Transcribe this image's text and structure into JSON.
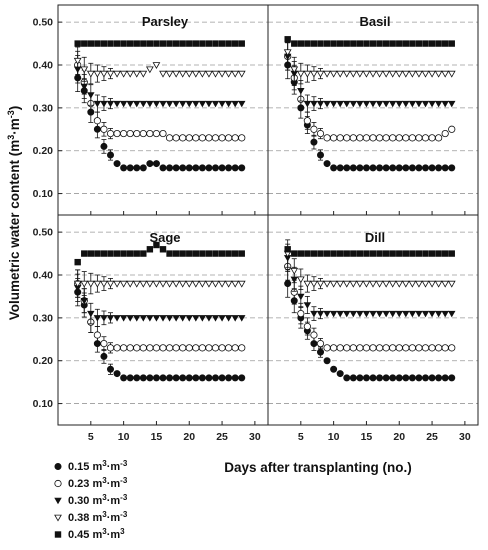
{
  "chart_data": [
    {
      "type": "scatter",
      "title": "Parsley",
      "x": [
        3,
        4,
        5,
        6,
        7,
        8,
        9,
        10,
        11,
        12,
        13,
        14,
        15,
        16,
        17,
        18,
        19,
        20,
        21,
        22,
        23,
        24,
        25,
        26,
        27,
        28
      ],
      "series": [
        {
          "name": "0.15",
          "values": [
            0.37,
            0.34,
            0.29,
            0.25,
            0.21,
            0.19,
            0.17,
            0.16,
            0.16,
            0.16,
            0.16,
            0.17,
            0.17,
            0.16,
            0.16,
            0.16,
            0.16,
            0.16,
            0.16,
            0.16,
            0.16,
            0.16,
            0.16,
            0.16,
            0.16,
            0.16
          ]
        },
        {
          "name": "0.23",
          "values": [
            0.4,
            0.36,
            0.31,
            0.27,
            0.25,
            0.24,
            0.24,
            0.24,
            0.24,
            0.24,
            0.24,
            0.24,
            0.24,
            0.24,
            0.23,
            0.23,
            0.23,
            0.23,
            0.23,
            0.23,
            0.23,
            0.23,
            0.23,
            0.23,
            0.23,
            0.23
          ]
        },
        {
          "name": "0.30",
          "values": [
            0.39,
            0.35,
            0.33,
            0.31,
            0.31,
            0.31,
            0.31,
            0.31,
            0.31,
            0.31,
            0.31,
            0.31,
            0.31,
            0.31,
            0.31,
            0.31,
            0.31,
            0.31,
            0.31,
            0.31,
            0.31,
            0.31,
            0.31,
            0.31,
            0.31,
            0.31
          ]
        },
        {
          "name": "0.38",
          "values": [
            0.41,
            0.39,
            0.38,
            0.38,
            0.38,
            0.38,
            0.38,
            0.38,
            0.38,
            0.38,
            0.38,
            0.39,
            0.4,
            0.38,
            0.38,
            0.38,
            0.38,
            0.38,
            0.38,
            0.38,
            0.38,
            0.38,
            0.38,
            0.38,
            0.38,
            0.38
          ]
        },
        {
          "name": "0.45",
          "values": [
            0.45,
            0.45,
            0.45,
            0.45,
            0.45,
            0.45,
            0.45,
            0.45,
            0.45,
            0.45,
            0.45,
            0.45,
            0.45,
            0.45,
            0.45,
            0.45,
            0.45,
            0.45,
            0.45,
            0.45,
            0.45,
            0.45,
            0.45,
            0.45,
            0.45,
            0.45
          ]
        }
      ]
    },
    {
      "type": "scatter",
      "title": "Basil",
      "x": [
        3,
        4,
        5,
        6,
        7,
        8,
        9,
        10,
        11,
        12,
        13,
        14,
        15,
        16,
        17,
        18,
        19,
        20,
        21,
        22,
        23,
        24,
        25,
        26,
        27,
        28
      ],
      "series": [
        {
          "name": "0.15",
          "values": [
            0.4,
            0.36,
            0.3,
            0.26,
            0.22,
            0.19,
            0.17,
            0.16,
            0.16,
            0.16,
            0.16,
            0.16,
            0.16,
            0.16,
            0.16,
            0.16,
            0.16,
            0.16,
            0.16,
            0.16,
            0.16,
            0.16,
            0.16,
            0.16,
            0.16,
            0.16
          ]
        },
        {
          "name": "0.23",
          "values": [
            0.42,
            0.37,
            0.32,
            0.27,
            0.25,
            0.24,
            0.23,
            0.23,
            0.23,
            0.23,
            0.23,
            0.23,
            0.23,
            0.23,
            0.23,
            0.23,
            0.23,
            0.23,
            0.23,
            0.23,
            0.23,
            0.23,
            0.23,
            0.23,
            0.24,
            0.25
          ]
        },
        {
          "name": "0.30",
          "values": [
            0.42,
            0.38,
            0.34,
            0.31,
            0.31,
            0.31,
            0.31,
            0.31,
            0.31,
            0.31,
            0.31,
            0.31,
            0.31,
            0.31,
            0.31,
            0.31,
            0.31,
            0.31,
            0.31,
            0.31,
            0.31,
            0.31,
            0.31,
            0.31,
            0.31,
            0.31
          ]
        },
        {
          "name": "0.38",
          "values": [
            0.43,
            0.39,
            0.38,
            0.38,
            0.38,
            0.38,
            0.38,
            0.38,
            0.38,
            0.38,
            0.38,
            0.38,
            0.38,
            0.38,
            0.38,
            0.38,
            0.38,
            0.38,
            0.38,
            0.38,
            0.38,
            0.38,
            0.38,
            0.38,
            0.38,
            0.38
          ]
        },
        {
          "name": "0.45",
          "values": [
            0.46,
            0.45,
            0.45,
            0.45,
            0.45,
            0.45,
            0.45,
            0.45,
            0.45,
            0.45,
            0.45,
            0.45,
            0.45,
            0.45,
            0.45,
            0.45,
            0.45,
            0.45,
            0.45,
            0.45,
            0.45,
            0.45,
            0.45,
            0.45,
            0.45,
            0.45
          ]
        }
      ]
    },
    {
      "type": "scatter",
      "title": "Sage",
      "x": [
        3,
        4,
        5,
        6,
        7,
        8,
        9,
        10,
        11,
        12,
        13,
        14,
        15,
        16,
        17,
        18,
        19,
        20,
        21,
        22,
        23,
        24,
        25,
        26,
        27,
        28
      ],
      "series": [
        {
          "name": "0.15",
          "values": [
            0.36,
            0.33,
            0.29,
            0.24,
            0.21,
            0.18,
            0.17,
            0.16,
            0.16,
            0.16,
            0.16,
            0.16,
            0.16,
            0.16,
            0.16,
            0.16,
            0.16,
            0.16,
            0.16,
            0.16,
            0.16,
            0.16,
            0.16,
            0.16,
            0.16,
            0.16
          ]
        },
        {
          "name": "0.23",
          "values": [
            0.38,
            0.34,
            0.29,
            0.26,
            0.24,
            0.23,
            0.23,
            0.23,
            0.23,
            0.23,
            0.23,
            0.23,
            0.23,
            0.23,
            0.23,
            0.23,
            0.23,
            0.23,
            0.23,
            0.23,
            0.23,
            0.23,
            0.23,
            0.23,
            0.23,
            0.23
          ]
        },
        {
          "name": "0.30",
          "values": [
            0.37,
            0.34,
            0.31,
            0.3,
            0.3,
            0.3,
            0.3,
            0.3,
            0.3,
            0.3,
            0.3,
            0.3,
            0.3,
            0.3,
            0.3,
            0.3,
            0.3,
            0.3,
            0.3,
            0.3,
            0.3,
            0.3,
            0.3,
            0.3,
            0.3,
            0.3
          ]
        },
        {
          "name": "0.38",
          "values": [
            0.38,
            0.38,
            0.38,
            0.38,
            0.38,
            0.38,
            0.38,
            0.38,
            0.38,
            0.38,
            0.38,
            0.38,
            0.38,
            0.38,
            0.38,
            0.38,
            0.38,
            0.38,
            0.38,
            0.38,
            0.38,
            0.38,
            0.38,
            0.38,
            0.38,
            0.38
          ]
        },
        {
          "name": "0.45",
          "values": [
            0.43,
            0.45,
            0.45,
            0.45,
            0.45,
            0.45,
            0.45,
            0.45,
            0.45,
            0.45,
            0.45,
            0.46,
            0.47,
            0.46,
            0.45,
            0.45,
            0.45,
            0.45,
            0.45,
            0.45,
            0.45,
            0.45,
            0.45,
            0.45,
            0.45,
            0.45
          ]
        }
      ]
    },
    {
      "type": "scatter",
      "title": "Dill",
      "x": [
        3,
        4,
        5,
        6,
        7,
        8,
        9,
        10,
        11,
        12,
        13,
        14,
        15,
        16,
        17,
        18,
        19,
        20,
        21,
        22,
        23,
        24,
        25,
        26,
        27,
        28
      ],
      "series": [
        {
          "name": "0.15",
          "values": [
            0.38,
            0.34,
            0.3,
            0.27,
            0.24,
            0.22,
            0.2,
            0.18,
            0.17,
            0.16,
            0.16,
            0.16,
            0.16,
            0.16,
            0.16,
            0.16,
            0.16,
            0.16,
            0.16,
            0.16,
            0.16,
            0.16,
            0.16,
            0.16,
            0.16,
            0.16
          ]
        },
        {
          "name": "0.23",
          "values": [
            0.42,
            0.36,
            0.31,
            0.28,
            0.26,
            0.24,
            0.23,
            0.23,
            0.23,
            0.23,
            0.23,
            0.23,
            0.23,
            0.23,
            0.23,
            0.23,
            0.23,
            0.23,
            0.23,
            0.23,
            0.23,
            0.23,
            0.23,
            0.23,
            0.23,
            0.23
          ]
        },
        {
          "name": "0.30",
          "values": [
            0.44,
            0.39,
            0.35,
            0.33,
            0.31,
            0.31,
            0.31,
            0.31,
            0.31,
            0.31,
            0.31,
            0.31,
            0.31,
            0.31,
            0.31,
            0.31,
            0.31,
            0.31,
            0.31,
            0.31,
            0.31,
            0.31,
            0.31,
            0.31,
            0.31,
            0.31
          ]
        },
        {
          "name": "0.38",
          "values": [
            0.45,
            0.41,
            0.39,
            0.38,
            0.38,
            0.38,
            0.38,
            0.38,
            0.38,
            0.38,
            0.38,
            0.38,
            0.38,
            0.38,
            0.38,
            0.38,
            0.38,
            0.38,
            0.38,
            0.38,
            0.38,
            0.38,
            0.38,
            0.38,
            0.38,
            0.38
          ]
        },
        {
          "name": "0.45",
          "values": [
            0.46,
            0.45,
            0.45,
            0.45,
            0.45,
            0.45,
            0.45,
            0.45,
            0.45,
            0.45,
            0.45,
            0.45,
            0.45,
            0.45,
            0.45,
            0.45,
            0.45,
            0.45,
            0.45,
            0.45,
            0.45,
            0.45,
            0.45,
            0.45,
            0.45,
            0.45
          ]
        }
      ]
    }
  ],
  "axes": {
    "xlabel": "Days after transplanting (no.)",
    "ylabel_main": "Volumetric water content (m",
    "ylabel_sup1": "3",
    "ylabel_mid": "·m",
    "ylabel_sup2": "-3",
    "ylabel_end": ")",
    "xlim": [
      0,
      32
    ],
    "ylim": [
      0.05,
      0.54
    ],
    "yticks": [
      "0.10",
      "0.20",
      "0.30",
      "0.40",
      "0.50"
    ],
    "xticks": [
      "5",
      "10",
      "15",
      "20",
      "25",
      "30"
    ],
    "grid": "horizontal dashed"
  },
  "legend": {
    "placement": "bottom-left",
    "items": [
      {
        "marker": "filled-circle",
        "value": "0.15 m",
        "sup1": "3",
        "mid": "·m",
        "sup2": "-3"
      },
      {
        "marker": "open-circle",
        "value": "0.23 m",
        "sup1": "3",
        "mid": "·m",
        "sup2": "-3"
      },
      {
        "marker": "filled-triangle-down",
        "value": "0.30 m",
        "sup1": "3",
        "mid": "·m",
        "sup2": "-3"
      },
      {
        "marker": "open-triangle-down",
        "value": "0.38 m",
        "sup1": "3",
        "mid": "·m",
        "sup2": "-3"
      },
      {
        "marker": "filled-square",
        "value": "0.45 m",
        "sup1": "3",
        "mid": "·m",
        "sup2": "3"
      }
    ]
  }
}
